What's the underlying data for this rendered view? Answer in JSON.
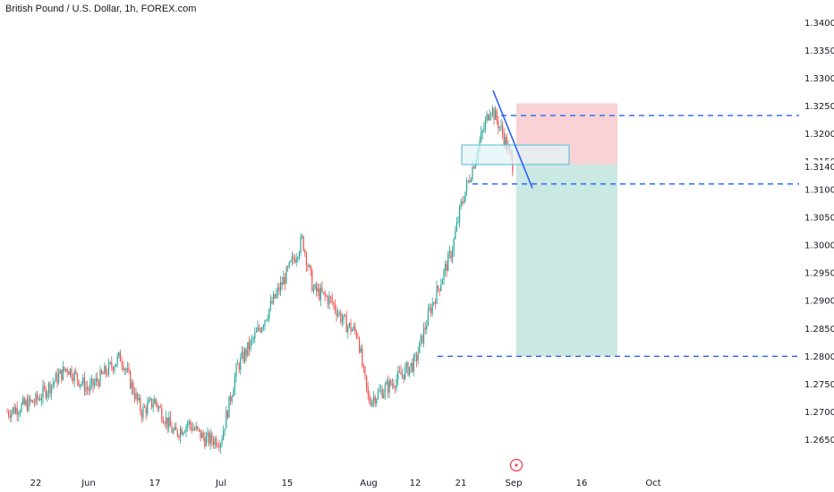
{
  "header": {
    "title": "British Pound / U.S. Dollar, 1h, FOREX.com"
  },
  "colors": {
    "up": "#26a69a",
    "down": "#ef5350",
    "hline": "#2962ff",
    "trendline": "#2962ff",
    "stop_zone": "#f8d2d4",
    "target_zone": "#cbe9e3",
    "demand_box_fill": "#e2f4f7",
    "demand_box_stroke": "#6cc1dd"
  },
  "events_icon": "lightning-icon",
  "chart_data": {
    "type": "line",
    "title": "British Pound / U.S. Dollar, 1h, FOREX.com",
    "xlabel": "",
    "ylabel": "",
    "ylim": [
      1.2622,
      1.3415
    ],
    "x_ticks": [
      "22",
      "Jun",
      "17",
      "Jul",
      "15",
      "Aug",
      "12",
      "21",
      "Sep",
      "16",
      "Oct"
    ],
    "y_ticks": [
      "1.34000",
      "1.33500",
      "1.33000",
      "1.32500",
      "1.32000",
      "1.31500",
      "1.31000",
      "1.30500",
      "1.30000",
      "1.29500",
      "1.29000",
      "1.28500",
      "1.28000",
      "1.27500",
      "1.27000",
      "1.26500"
    ],
    "last_price_label": "1.31409",
    "last_price": 1.31409,
    "horizontal_levels": [
      1.3233,
      1.311,
      1.28
    ],
    "stop_zone": [
      1.3145,
      1.3255
    ],
    "target_zone": [
      1.28,
      1.3145
    ],
    "demand_box": [
      1.3145,
      1.318
    ],
    "trendline": [
      [
        1.3278,
        1.3102
      ]
    ],
    "series": [
      {
        "x": [
          "May 17",
          "May 22",
          "May 29",
          "Jun 3",
          "Jun 10",
          "Jun 14",
          "Jun 17",
          "Jun 21",
          "Jun 24",
          "Jun 27",
          "Jul 1",
          "Jul 5",
          "Jul 10",
          "Jul 15",
          "Jul 17",
          "Jul 19",
          "Jul 23",
          "Jul 26",
          "Jul 30",
          "Aug 2",
          "Aug 5",
          "Aug 8",
          "Aug 12",
          "Aug 15",
          "Aug 19",
          "Aug 21",
          "Aug 23",
          "Aug 26",
          "Aug 28",
          "Aug 30"
        ],
        "values": [
          1.27,
          1.272,
          1.278,
          1.274,
          1.28,
          1.27,
          1.272,
          1.266,
          1.268,
          1.265,
          1.265,
          1.278,
          1.285,
          1.295,
          1.301,
          1.292,
          1.29,
          1.286,
          1.284,
          1.278,
          1.272,
          1.275,
          1.279,
          1.288,
          1.299,
          1.307,
          1.314,
          1.325,
          1.32,
          1.314
        ]
      }
    ]
  }
}
